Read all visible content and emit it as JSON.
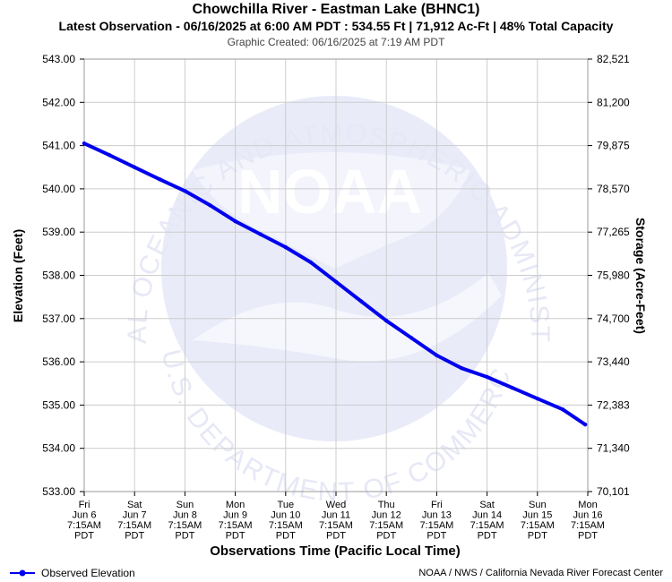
{
  "header": {
    "title": "Chowchilla River - Eastman Lake (BHNC1)",
    "subtitle": "Latest Observation - 06/16/2025 at 6:00 AM PDT : 534.55 Ft | 71,912 Ac-Ft | 48% Total Capacity",
    "created": "Graphic Created: 06/16/2025 at 7:19 AM PDT"
  },
  "watermark": {
    "logo_text": "NOAA",
    "ring_top": "NATIONAL OCEANIC AND ATMOSPHERIC ADMINISTRATION",
    "ring_bottom": "U.S. DEPARTMENT OF COMMERCE"
  },
  "legend": {
    "label": "Observed Elevation"
  },
  "credit": "NOAA / NWS / California Nevada River Forecast Center",
  "colors": {
    "series": "#0000ee",
    "grid": "#cccccc",
    "watermark": "#e8eaf8"
  },
  "chart_data": {
    "type": "line",
    "xlabel": "Observations Time (Pacific Local Time)",
    "ylabel": "Elevation (Feet)",
    "y2label": "Storage (Acre-Feet)",
    "ylim": [
      533.0,
      543.0
    ],
    "xlim": [
      "2025-06-06 07:15",
      "2025-06-16 07:15"
    ],
    "grid": true,
    "legend_position": "bottom-left",
    "y_ticks": [
      "543.00",
      "542.00",
      "541.00",
      "540.00",
      "539.00",
      "538.00",
      "537.00",
      "536.00",
      "535.00",
      "534.00",
      "533.00"
    ],
    "y2_ticks": [
      "82,521",
      "81,200",
      "79,875",
      "78,570",
      "77,265",
      "75,980",
      "74,700",
      "73,440",
      "72,383",
      "71,340",
      "70,101"
    ],
    "x_ticks": [
      [
        "Fri",
        "Jun 6",
        "7:15AM",
        "PDT"
      ],
      [
        "Sat",
        "Jun 7",
        "7:15AM",
        "PDT"
      ],
      [
        "Sun",
        "Jun 8",
        "7:15AM",
        "PDT"
      ],
      [
        "Mon",
        "Jun 9",
        "7:15AM",
        "PDT"
      ],
      [
        "Tue",
        "Jun 10",
        "7:15AM",
        "PDT"
      ],
      [
        "Wed",
        "Jun 11",
        "7:15AM",
        "PDT"
      ],
      [
        "Thu",
        "Jun 12",
        "7:15AM",
        "PDT"
      ],
      [
        "Fri",
        "Jun 13",
        "7:15AM",
        "PDT"
      ],
      [
        "Sat",
        "Jun 14",
        "7:15AM",
        "PDT"
      ],
      [
        "Sun",
        "Jun 15",
        "7:15AM",
        "PDT"
      ],
      [
        "Mon",
        "Jun 16",
        "7:15AM",
        "PDT"
      ]
    ],
    "series": [
      {
        "name": "Observed Elevation",
        "x": [
          "2025-06-06 07:15",
          "2025-06-06 19:15",
          "2025-06-07 07:15",
          "2025-06-07 19:15",
          "2025-06-08 07:15",
          "2025-06-08 19:15",
          "2025-06-09 07:15",
          "2025-06-09 19:15",
          "2025-06-10 07:15",
          "2025-06-10 19:15",
          "2025-06-11 07:15",
          "2025-06-11 19:15",
          "2025-06-12 07:15",
          "2025-06-12 19:15",
          "2025-06-13 07:15",
          "2025-06-13 19:15",
          "2025-06-14 07:15",
          "2025-06-14 19:15",
          "2025-06-15 07:15",
          "2025-06-15 19:15",
          "2025-06-16 06:00"
        ],
        "y": [
          541.05,
          540.78,
          540.5,
          540.22,
          539.95,
          539.62,
          539.25,
          538.95,
          538.65,
          538.3,
          537.85,
          537.4,
          536.95,
          536.55,
          536.15,
          535.85,
          535.65,
          535.4,
          535.15,
          534.9,
          534.55
        ]
      }
    ]
  }
}
